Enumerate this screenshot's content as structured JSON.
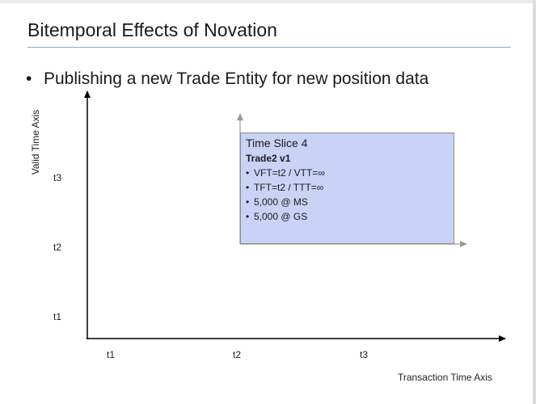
{
  "slide": {
    "title": "Bitemporal Effects of Novation",
    "bullet": "Publishing a new Trade Entity for new position data"
  },
  "axes": {
    "y_title": "Valid Time Axis",
    "x_title": "Transaction Time Axis",
    "y_ticks": [
      "t3",
      "t2",
      "t1"
    ],
    "x_ticks": [
      "t1",
      "t2",
      "t3"
    ]
  },
  "time_slice": {
    "title": "Time Slice 4",
    "trade": "Trade2 v1",
    "items": [
      "VFT=t2 / VTT=∞",
      "TFT=t2 / TTT=∞",
      "5,000 @ MS",
      "5,000 @ GS"
    ]
  },
  "colors": {
    "box_fill": "#c9d3f6",
    "title_rule": "#8fa9d8",
    "axis": "#000000",
    "slice_arrow": "#9a9a9a"
  }
}
